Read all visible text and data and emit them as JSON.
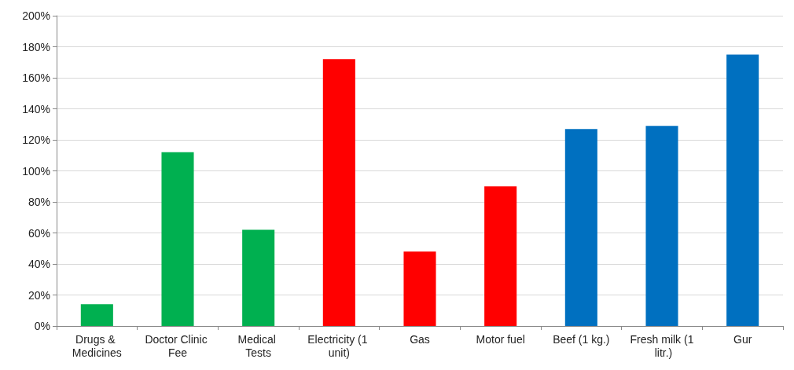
{
  "chart_data": {
    "type": "bar",
    "categories": [
      "Drugs & Medicines",
      "Doctor Clinic Fee",
      "Medical Tests",
      "Electricity (1 unit)",
      "Gas",
      "Motor fuel",
      "Beef (1 kg.)",
      "Fresh milk (1 litr.)",
      "Gur"
    ],
    "values": [
      14,
      112,
      62,
      172,
      48,
      90,
      127,
      129,
      175
    ],
    "colors": [
      "#00b050",
      "#00b050",
      "#00b050",
      "#ff0000",
      "#ff0000",
      "#ff0000",
      "#0070c0",
      "#0070c0",
      "#0070c0"
    ],
    "ylim": [
      0,
      200
    ],
    "yticks": [
      {
        "value": 0,
        "label": "0%"
      },
      {
        "value": 20,
        "label": "20%"
      },
      {
        "value": 40,
        "label": "40%"
      },
      {
        "value": 60,
        "label": "60%"
      },
      {
        "value": 80,
        "label": "80%"
      },
      {
        "value": 100,
        "label": "100%"
      },
      {
        "value": 120,
        "label": "120%"
      },
      {
        "value": 140,
        "label": "140%"
      },
      {
        "value": 160,
        "label": "160%"
      },
      {
        "value": 180,
        "label": "180%"
      },
      {
        "value": 200,
        "label": "200%"
      }
    ],
    "grid": "y"
  }
}
